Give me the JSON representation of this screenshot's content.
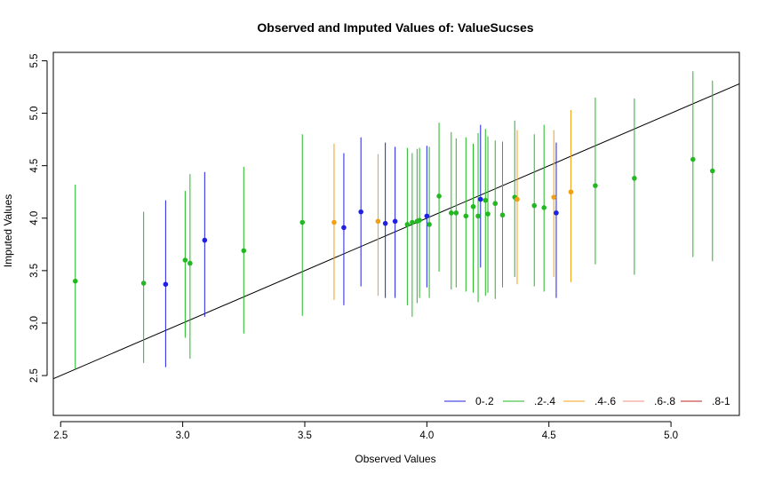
{
  "chart_data": {
    "type": "scatter",
    "title": "Observed and Imputed Values of: ValueSucses",
    "xlabel": "Observed Values",
    "ylabel": "Imputed Values",
    "xlim": [
      2.47,
      5.28
    ],
    "ylim": [
      2.12,
      5.58
    ],
    "xticks": [
      2.5,
      3.0,
      3.5,
      4.0,
      4.5,
      5.0
    ],
    "yticks": [
      2.5,
      3.0,
      3.5,
      4.0,
      4.5,
      5.0,
      5.5
    ],
    "xtick_labels": [
      "2.5",
      "3.0",
      "3.5",
      "4.0",
      "4.5",
      "5.0"
    ],
    "ytick_labels": [
      "2.5",
      "3.0",
      "3.5",
      "4.0",
      "4.5",
      "5.0",
      "5.5"
    ],
    "reference_line": {
      "intercept": 0,
      "slope": 1
    },
    "legend": {
      "position": "bottom-right",
      "orientation": "horizontal"
    },
    "series": [
      {
        "name": "0-.2",
        "color": "#2020e0",
        "points": [
          {
            "x": 2.93,
            "y": 3.37,
            "low": 2.58,
            "high": 4.17
          },
          {
            "x": 3.09,
            "y": 3.79,
            "low": 3.06,
            "high": 4.44
          },
          {
            "x": 3.66,
            "y": 3.91,
            "low": 3.17,
            "high": 4.62
          },
          {
            "x": 3.73,
            "y": 4.06,
            "low": 3.35,
            "high": 4.77
          },
          {
            "x": 3.83,
            "y": 3.95,
            "low": 3.24,
            "high": 4.72
          },
          {
            "x": 3.87,
            "y": 3.97,
            "low": 3.24,
            "high": 4.68
          },
          {
            "x": 4.0,
            "y": 4.02,
            "low": 3.34,
            "high": 4.69
          },
          {
            "x": 4.22,
            "y": 4.18,
            "low": 3.53,
            "high": 4.89
          },
          {
            "x": 4.53,
            "y": 4.05,
            "low": 3.24,
            "high": 4.72
          }
        ]
      },
      {
        "name": ".2-.4",
        "color": "#22b822",
        "points": [
          {
            "x": 2.56,
            "y": 3.4,
            "low": 2.56,
            "high": 4.32
          },
          {
            "x": 2.84,
            "y": 3.38,
            "low": 2.62,
            "high": 4.06
          },
          {
            "x": 3.01,
            "y": 3.6,
            "low": 2.86,
            "high": 4.26
          },
          {
            "x": 3.03,
            "y": 3.57,
            "low": 2.66,
            "high": 4.42
          },
          {
            "x": 3.25,
            "y": 3.69,
            "low": 2.9,
            "high": 4.49
          },
          {
            "x": 3.49,
            "y": 3.96,
            "low": 3.07,
            "high": 4.8
          },
          {
            "x": 3.92,
            "y": 3.94,
            "low": 3.17,
            "high": 4.67
          },
          {
            "x": 3.94,
            "y": 3.96,
            "low": 3.06,
            "high": 4.62
          },
          {
            "x": 3.96,
            "y": 3.97,
            "low": 3.19,
            "high": 4.66
          },
          {
            "x": 3.97,
            "y": 3.98,
            "low": 3.24,
            "high": 4.67
          },
          {
            "x": 4.01,
            "y": 3.94,
            "low": 3.24,
            "high": 4.68
          },
          {
            "x": 4.05,
            "y": 4.21,
            "low": 3.49,
            "high": 4.91
          },
          {
            "x": 4.1,
            "y": 4.05,
            "low": 3.32,
            "high": 4.82
          },
          {
            "x": 4.12,
            "y": 4.05,
            "low": 3.34,
            "high": 4.76
          },
          {
            "x": 4.16,
            "y": 4.02,
            "low": 3.3,
            "high": 4.77
          },
          {
            "x": 4.19,
            "y": 4.11,
            "low": 3.29,
            "high": 4.71
          },
          {
            "x": 4.21,
            "y": 4.02,
            "low": 3.2,
            "high": 4.81
          },
          {
            "x": 4.24,
            "y": 4.17,
            "low": 3.26,
            "high": 4.85
          },
          {
            "x": 4.25,
            "y": 4.04,
            "low": 3.29,
            "high": 4.78
          },
          {
            "x": 4.28,
            "y": 4.14,
            "low": 3.23,
            "high": 4.74
          },
          {
            "x": 4.31,
            "y": 4.03,
            "low": 3.34,
            "high": 4.73
          },
          {
            "x": 4.36,
            "y": 4.2,
            "low": 3.44,
            "high": 4.93
          },
          {
            "x": 4.44,
            "y": 4.12,
            "low": 3.35,
            "high": 4.8
          },
          {
            "x": 4.48,
            "y": 4.1,
            "low": 3.3,
            "high": 4.89
          },
          {
            "x": 4.69,
            "y": 4.31,
            "low": 3.56,
            "high": 5.15
          },
          {
            "x": 4.85,
            "y": 4.38,
            "low": 3.46,
            "high": 5.14
          },
          {
            "x": 5.09,
            "y": 4.56,
            "low": 3.63,
            "high": 5.4
          },
          {
            "x": 5.17,
            "y": 4.45,
            "low": 3.59,
            "high": 5.31
          }
        ]
      },
      {
        "name": ".4-.6",
        "color": "#f0a010",
        "points": [
          {
            "x": 3.62,
            "y": 3.96,
            "low": 3.22,
            "high": 4.71
          },
          {
            "x": 3.8,
            "y": 3.97,
            "low": 3.26,
            "high": 4.61
          },
          {
            "x": 4.37,
            "y": 4.18,
            "low": 3.37,
            "high": 4.84
          },
          {
            "x": 4.52,
            "y": 4.2,
            "low": 3.44,
            "high": 4.84
          },
          {
            "x": 4.59,
            "y": 4.25,
            "low": 3.39,
            "high": 5.03
          }
        ]
      },
      {
        "name": ".6-.8",
        "color": "#f09080",
        "points": []
      },
      {
        "name": ".8-1",
        "color": "#c02020",
        "points": []
      }
    ]
  }
}
